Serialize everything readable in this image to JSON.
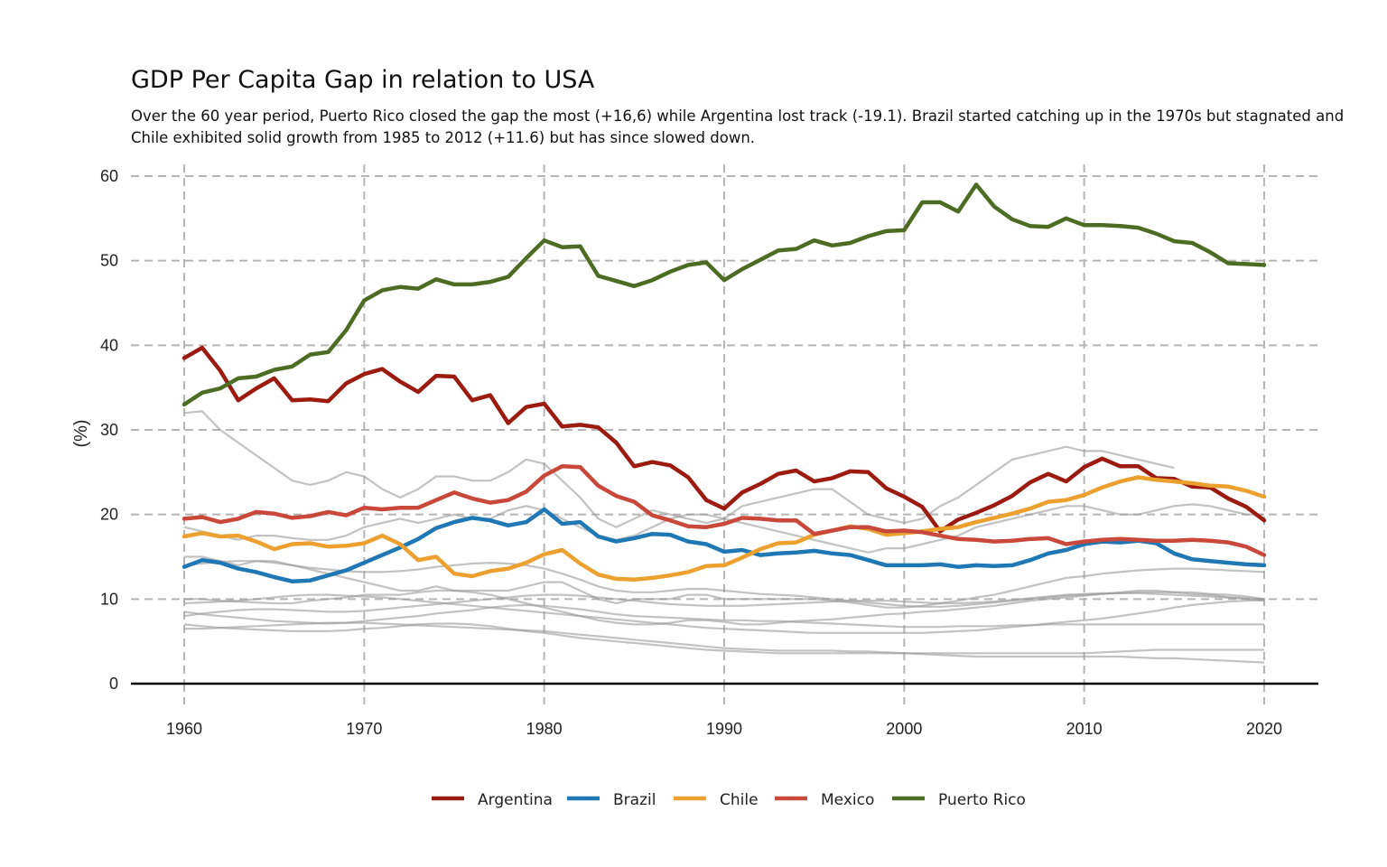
{
  "chart_data": {
    "type": "line",
    "title": "GDP Per Capita Gap in relation to USA",
    "subtitle": [
      "Over the 60 year period, Puerto Rico closed the gap the most (+16,6) while Argentina lost track (-19.1). Brazil started catching up in the 1970s but stagnated and",
      "Chile exhibited solid growth from 1985 to 2012 (+11.6) but has since slowed down."
    ],
    "xlabel": "",
    "ylabel": "(%)",
    "xlim": [
      1957,
      2023
    ],
    "ylim": [
      0,
      60
    ],
    "x_ticks": [
      1960,
      1970,
      1980,
      1990,
      2000,
      2010,
      2020
    ],
    "y_ticks": [
      0,
      10,
      20,
      30,
      40,
      50,
      60
    ],
    "grid": true,
    "legend_position": "bottom",
    "series": [
      {
        "name": "Argentina",
        "color": "#9b1b10",
        "x": [
          1960,
          1961,
          1962,
          1963,
          1964,
          1965,
          1966,
          1967,
          1968,
          1969,
          1970,
          1971,
          1972,
          1973,
          1974,
          1975,
          1976,
          1977,
          1978,
          1979,
          1980,
          1981,
          1982,
          1983,
          1984,
          1985,
          1986,
          1987,
          1988,
          1989,
          1990,
          1991,
          1992,
          1993,
          1994,
          1995,
          1996,
          1997,
          1998,
          1999,
          2000,
          2001,
          2002,
          2003,
          2004,
          2005,
          2006,
          2007,
          2008,
          2009,
          2010,
          2011,
          2012,
          2013,
          2014,
          2015,
          2016,
          2017,
          2018,
          2019,
          2020
        ],
        "values": [
          38.5,
          39.7,
          37.0,
          33.5,
          34.9,
          36.1,
          33.5,
          33.6,
          33.4,
          35.5,
          36.6,
          37.2,
          35.7,
          34.5,
          36.4,
          36.3,
          33.5,
          34.1,
          30.8,
          32.7,
          33.1,
          30.4,
          30.6,
          30.3,
          28.5,
          25.7,
          26.2,
          25.8,
          24.4,
          21.7,
          20.7,
          22.6,
          23.6,
          24.8,
          25.2,
          23.9,
          24.3,
          25.1,
          25.0,
          23.1,
          22.1,
          20.9,
          18.0,
          19.4,
          20.2,
          21.1,
          22.2,
          23.8,
          24.8,
          23.9,
          25.6,
          26.6,
          25.7,
          25.7,
          24.3,
          24.2,
          23.3,
          23.2,
          21.9,
          20.9,
          19.3
        ]
      },
      {
        "name": "Brazil",
        "color": "#1f77b4",
        "x": [
          1960,
          1961,
          1962,
          1963,
          1964,
          1965,
          1966,
          1967,
          1968,
          1969,
          1970,
          1971,
          1972,
          1973,
          1974,
          1975,
          1976,
          1977,
          1978,
          1979,
          1980,
          1981,
          1982,
          1983,
          1984,
          1985,
          1986,
          1987,
          1988,
          1989,
          1990,
          1991,
          1992,
          1993,
          1994,
          1995,
          1996,
          1997,
          1998,
          1999,
          2000,
          2001,
          2002,
          2003,
          2004,
          2005,
          2006,
          2007,
          2008,
          2009,
          2010,
          2011,
          2012,
          2013,
          2014,
          2015,
          2016,
          2017,
          2018,
          2019,
          2020
        ],
        "values": [
          13.8,
          14.6,
          14.3,
          13.6,
          13.2,
          12.6,
          12.1,
          12.2,
          12.8,
          13.4,
          14.3,
          15.2,
          16.1,
          17.1,
          18.4,
          19.1,
          19.6,
          19.3,
          18.7,
          19.1,
          20.6,
          18.9,
          19.1,
          17.4,
          16.8,
          17.2,
          17.7,
          17.6,
          16.8,
          16.5,
          15.6,
          15.8,
          15.2,
          15.4,
          15.5,
          15.7,
          15.4,
          15.2,
          14.6,
          14.0,
          14.0,
          14.0,
          14.1,
          13.8,
          14.0,
          13.9,
          14.0,
          14.6,
          15.4,
          15.8,
          16.5,
          16.8,
          16.7,
          16.9,
          16.6,
          15.4,
          14.7,
          14.5,
          14.3,
          14.1,
          14.0
        ]
      },
      {
        "name": "Chile",
        "color": "#eba030",
        "x": [
          1960,
          1961,
          1962,
          1963,
          1964,
          1965,
          1966,
          1967,
          1968,
          1969,
          1970,
          1971,
          1972,
          1973,
          1974,
          1975,
          1976,
          1977,
          1978,
          1979,
          1980,
          1981,
          1982,
          1983,
          1984,
          1985,
          1986,
          1987,
          1988,
          1989,
          1990,
          1991,
          1992,
          1993,
          1994,
          1995,
          1996,
          1997,
          1998,
          1999,
          2000,
          2001,
          2002,
          2003,
          2004,
          2005,
          2006,
          2007,
          2008,
          2009,
          2010,
          2011,
          2012,
          2013,
          2014,
          2015,
          2016,
          2017,
          2018,
          2019,
          2020
        ],
        "values": [
          17.4,
          17.8,
          17.4,
          17.5,
          16.8,
          15.9,
          16.5,
          16.6,
          16.2,
          16.3,
          16.6,
          17.5,
          16.5,
          14.6,
          15.0,
          13.0,
          12.7,
          13.3,
          13.6,
          14.3,
          15.3,
          15.8,
          14.2,
          12.9,
          12.4,
          12.3,
          12.5,
          12.8,
          13.2,
          13.9,
          14.0,
          14.9,
          15.9,
          16.6,
          16.7,
          17.6,
          18.1,
          18.6,
          18.3,
          17.6,
          17.8,
          18.0,
          18.3,
          18.5,
          19.1,
          19.6,
          20.1,
          20.7,
          21.5,
          21.7,
          22.3,
          23.2,
          23.9,
          24.4,
          24.1,
          23.9,
          23.7,
          23.4,
          23.3,
          22.8,
          22.1
        ]
      },
      {
        "name": "Mexico",
        "color": "#c9483c",
        "x": [
          1960,
          1961,
          1962,
          1963,
          1964,
          1965,
          1966,
          1967,
          1968,
          1969,
          1970,
          1971,
          1972,
          1973,
          1974,
          1975,
          1976,
          1977,
          1978,
          1979,
          1980,
          1981,
          1982,
          1983,
          1984,
          1985,
          1986,
          1987,
          1988,
          1989,
          1990,
          1991,
          1992,
          1993,
          1994,
          1995,
          1996,
          1997,
          1998,
          1999,
          2000,
          2001,
          2002,
          2003,
          2004,
          2005,
          2006,
          2007,
          2008,
          2009,
          2010,
          2011,
          2012,
          2013,
          2014,
          2015,
          2016,
          2017,
          2018,
          2019,
          2020
        ],
        "values": [
          19.5,
          19.7,
          19.1,
          19.5,
          20.3,
          20.1,
          19.6,
          19.8,
          20.3,
          19.9,
          20.8,
          20.6,
          20.8,
          20.8,
          21.7,
          22.6,
          21.9,
          21.4,
          21.7,
          22.7,
          24.6,
          25.7,
          25.6,
          23.4,
          22.2,
          21.5,
          19.9,
          19.3,
          18.6,
          18.5,
          18.9,
          19.6,
          19.5,
          19.3,
          19.3,
          17.7,
          18.1,
          18.5,
          18.5,
          18.0,
          18.1,
          17.9,
          17.5,
          17.1,
          17.0,
          16.8,
          16.9,
          17.1,
          17.2,
          16.5,
          16.8,
          17.0,
          17.1,
          17.0,
          16.9,
          16.9,
          17.0,
          16.9,
          16.7,
          16.2,
          15.2
        ]
      },
      {
        "name": "Puerto Rico",
        "color": "#4e6b23",
        "x": [
          1960,
          1961,
          1962,
          1963,
          1964,
          1965,
          1966,
          1967,
          1968,
          1969,
          1970,
          1971,
          1972,
          1973,
          1974,
          1975,
          1976,
          1977,
          1978,
          1979,
          1980,
          1981,
          1982,
          1983,
          1984,
          1985,
          1986,
          1987,
          1988,
          1989,
          1990,
          1991,
          1992,
          1993,
          1994,
          1995,
          1996,
          1997,
          1998,
          1999,
          2000,
          2001,
          2002,
          2003,
          2004,
          2005,
          2006,
          2007,
          2008,
          2009,
          2010,
          2011,
          2012,
          2013,
          2014,
          2015,
          2016,
          2017,
          2018,
          2019,
          2020
        ],
        "values": [
          33.0,
          34.4,
          34.9,
          36.1,
          36.3,
          37.1,
          37.5,
          38.9,
          39.2,
          41.8,
          45.3,
          46.5,
          46.9,
          46.7,
          47.8,
          47.2,
          47.2,
          47.5,
          48.1,
          50.3,
          52.4,
          51.6,
          51.7,
          48.2,
          47.6,
          47.0,
          47.7,
          48.7,
          49.5,
          49.8,
          47.7,
          49.0,
          50.1,
          51.2,
          51.4,
          52.4,
          51.8,
          52.1,
          52.9,
          53.5,
          53.6,
          56.9,
          56.9,
          55.8,
          59.0,
          56.4,
          54.9,
          54.1,
          54.0,
          55.0,
          54.2,
          54.2,
          54.1,
          53.9,
          53.2,
          52.3,
          52.1,
          51.0,
          49.7,
          49.6,
          49.5
        ]
      }
    ]
  }
}
